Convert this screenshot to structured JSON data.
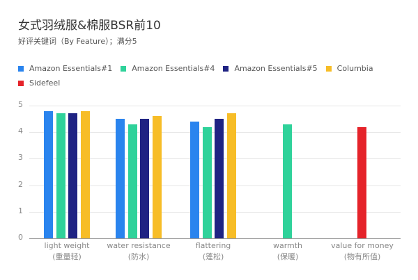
{
  "header": {
    "title": "女式羽绒服&棉服BSR前10",
    "subtitle": "好评关键词（By Feature）；满分5"
  },
  "legend": [
    {
      "label": "Amazon Essentials#1",
      "color": "#2a84ee"
    },
    {
      "label": "Amazon Essentials#4",
      "color": "#2fd29a"
    },
    {
      "label": "Amazon Essentials#5",
      "color": "#1f2383"
    },
    {
      "label": "Columbia",
      "color": "#f7bd27"
    },
    {
      "label": "Sidefeel",
      "color": "#e5232a"
    }
  ],
  "chart_data": {
    "type": "bar",
    "title": "女式羽绒服&棉服BSR前10",
    "subtitle": "好评关键词（By Feature）；满分5",
    "categories": [
      "light weight\n(重量轻)",
      "water resistance\n(防水)",
      "flattering\n(蓬松)",
      "warmth\n(保暖)",
      "value for money\n(物有所值)"
    ],
    "category_labels": [
      {
        "en": "light weight",
        "zh": "(重量轻)"
      },
      {
        "en": "water resistance",
        "zh": "(防水)"
      },
      {
        "en": "flattering",
        "zh": "(蓬松)"
      },
      {
        "en": "warmth",
        "zh": "(保暖)"
      },
      {
        "en": "value for money",
        "zh": "(物有所值)"
      }
    ],
    "series": [
      {
        "name": "Amazon Essentials#1",
        "color": "#2a84ee",
        "values": [
          4.8,
          4.5,
          4.4,
          null,
          null
        ]
      },
      {
        "name": "Amazon Essentials#4",
        "color": "#2fd29a",
        "values": [
          4.7,
          4.3,
          4.2,
          4.3,
          null
        ]
      },
      {
        "name": "Amazon Essentials#5",
        "color": "#1f2383",
        "values": [
          4.7,
          4.5,
          4.5,
          null,
          null
        ]
      },
      {
        "name": "Columbia",
        "color": "#f7bd27",
        "values": [
          4.8,
          4.6,
          4.7,
          null,
          null
        ]
      },
      {
        "name": "Sidefeel",
        "color": "#e5232a",
        "values": [
          null,
          null,
          null,
          null,
          4.2
        ]
      }
    ],
    "yticks": [
      0,
      1,
      2,
      3,
      4,
      5
    ],
    "ylim": [
      0,
      5
    ],
    "xlabel": "",
    "ylabel": "",
    "grid": true,
    "legend_position": "top"
  }
}
